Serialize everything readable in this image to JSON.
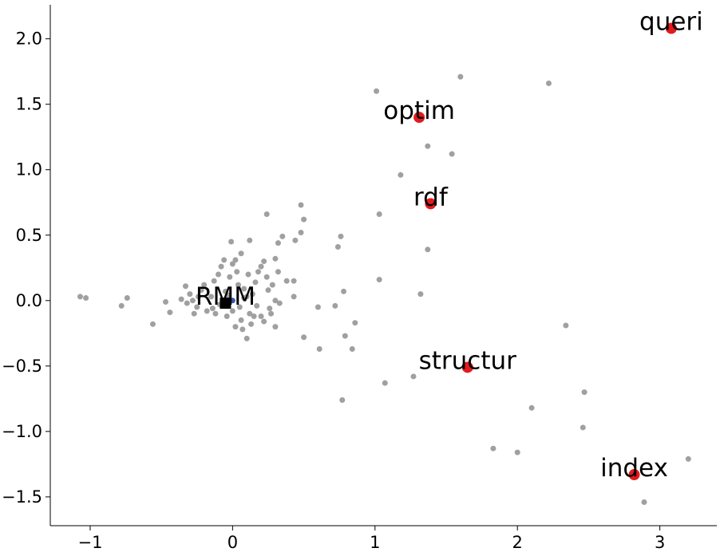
{
  "chart_data": {
    "type": "scatter",
    "xlim": [
      -1.28,
      3.4
    ],
    "ylim": [
      -1.72,
      2.26
    ],
    "xticks": [
      {
        "value": -1,
        "label": "−1"
      },
      0,
      1,
      2,
      3
    ],
    "yticks": [
      {
        "value": -1.5,
        "label": "−1.5"
      },
      {
        "value": -1.0,
        "label": "−1.0"
      },
      {
        "value": -0.5,
        "label": "−0.5"
      },
      {
        "value": 0,
        "label": "0.0"
      },
      0.5,
      {
        "value": 1,
        "label": "1.0"
      },
      1.5,
      {
        "value": 2,
        "label": "2.0"
      }
    ],
    "series": [
      {
        "color": "#a0a0a0",
        "marker": "circle",
        "x": [
          -1.07,
          -1.03,
          -0.78,
          -0.74,
          -0.56,
          -0.47,
          -0.44,
          1.01,
          1.6,
          2.22,
          1.37,
          1.54,
          1.18,
          1.03,
          1.37,
          1.03,
          1.32,
          2.34,
          1.27,
          1.07,
          2.47,
          2.1,
          2.46,
          1.83,
          2.0,
          3.2,
          2.89,
          0.77,
          0.84,
          0.86,
          0.79,
          0.61,
          0.5,
          0.6,
          0.72,
          0.78,
          0.76,
          0.74,
          0.48,
          0.5,
          0.48,
          0.44,
          0.35,
          0.32,
          0.24,
          0.12,
          -0.01,
          0.43,
          0.38,
          0.43,
          0.3,
          0.27,
          0.33,
          -0.33,
          -0.3,
          -0.28,
          -0.32,
          -0.25,
          -0.22,
          -0.2,
          -0.18,
          -0.15,
          -0.13,
          -0.12,
          -0.1,
          -0.08,
          -0.06,
          -0.05,
          -0.04,
          -0.02,
          0.0,
          0.02,
          0.03,
          0.04,
          0.05,
          0.06,
          0.07,
          0.08,
          0.1,
          0.12,
          0.13,
          0.14,
          0.16,
          0.17,
          0.18,
          0.2,
          0.2,
          0.22,
          0.24,
          0.25,
          0.26,
          0.28,
          0.3,
          0.3,
          0.32,
          0.1,
          0.0,
          -0.03,
          0.08,
          -0.09,
          0.15,
          0.22,
          0.02,
          -0.14,
          -0.24,
          -0.36,
          -0.27,
          0.11,
          0.06
        ],
        "y": [
          0.03,
          0.02,
          -0.04,
          0.02,
          -0.18,
          -0.01,
          -0.09,
          1.6,
          1.71,
          1.66,
          1.18,
          1.12,
          0.96,
          0.66,
          0.39,
          0.16,
          0.05,
          -0.19,
          -0.58,
          -0.63,
          -0.7,
          -0.82,
          -0.97,
          -1.13,
          -1.16,
          -1.21,
          -1.54,
          -0.76,
          -0.37,
          -0.17,
          -0.27,
          -0.37,
          -0.28,
          -0.05,
          -0.04,
          0.07,
          0.49,
          0.41,
          0.73,
          0.62,
          0.52,
          0.46,
          0.49,
          0.44,
          0.66,
          0.46,
          0.45,
          0.15,
          0.15,
          0.03,
          -0.2,
          -0.1,
          -0.02,
          0.11,
          0.05,
          0.0,
          -0.02,
          -0.05,
          0.08,
          0.12,
          -0.08,
          0.03,
          0.15,
          -0.1,
          0.2,
          0.26,
          0.31,
          0.07,
          -0.12,
          0.18,
          0.28,
          0.31,
          0.22,
          0.12,
          -0.05,
          -0.15,
          -0.22,
          0.09,
          0.03,
          -0.1,
          -0.18,
          0.05,
          0.14,
          -0.04,
          0.22,
          0.26,
          -0.12,
          0.3,
          0.18,
          0.08,
          -0.06,
          0.12,
          0.32,
          0.0,
          0.22,
          -0.29,
          -0.08,
          0.04,
          0.02,
          -0.03,
          -0.12,
          -0.16,
          -0.2,
          -0.06,
          0.03,
          0.01,
          -0.1,
          0.2,
          0.36
        ]
      },
      {
        "color": "#e31a1c",
        "marker": "circle",
        "x": [
          3.08,
          1.31,
          1.39,
          1.65,
          2.82
        ],
        "y": [
          2.08,
          1.4,
          0.74,
          -0.51,
          -1.33
        ],
        "labels": [
          "queri",
          "optim",
          "rdf",
          "structur",
          "index"
        ]
      },
      {
        "color": "#3a55b4",
        "marker": "circle",
        "x": [
          0.0
        ],
        "y": [
          0.0
        ]
      },
      {
        "color": "#000000",
        "marker": "square",
        "x": [
          -0.05
        ],
        "y": [
          -0.02
        ],
        "labels": [
          "RMM"
        ]
      }
    ]
  }
}
